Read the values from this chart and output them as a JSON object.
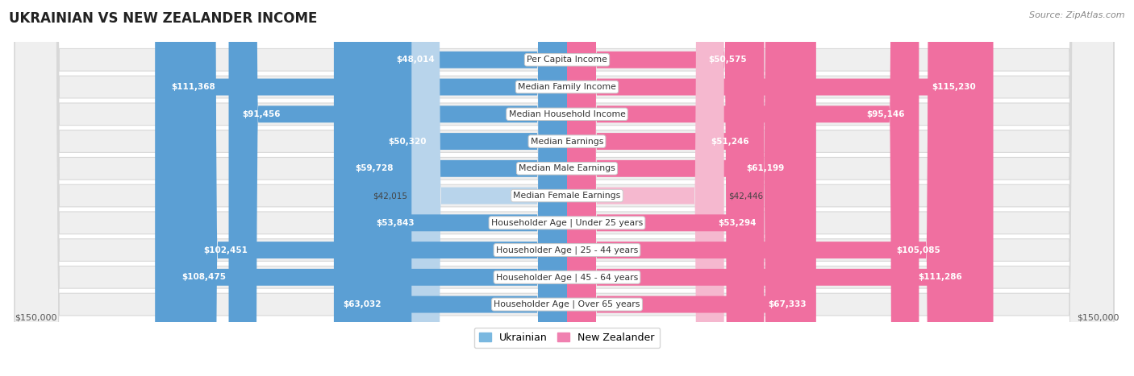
{
  "title": "UKRAINIAN VS NEW ZEALANDER INCOME",
  "source": "Source: ZipAtlas.com",
  "categories": [
    "Per Capita Income",
    "Median Family Income",
    "Median Household Income",
    "Median Earnings",
    "Median Male Earnings",
    "Median Female Earnings",
    "Householder Age | Under 25 years",
    "Householder Age | 25 - 44 years",
    "Householder Age | 45 - 64 years",
    "Householder Age | Over 65 years"
  ],
  "ukrainian_values": [
    48014,
    111368,
    91456,
    50320,
    59728,
    42015,
    53843,
    102451,
    108475,
    63032
  ],
  "newzealander_values": [
    50575,
    115230,
    95146,
    51246,
    61199,
    42446,
    53294,
    105085,
    111286,
    67333
  ],
  "ukrainian_labels": [
    "$48,014",
    "$111,368",
    "$91,456",
    "$50,320",
    "$59,728",
    "$42,015",
    "$53,843",
    "$102,451",
    "$108,475",
    "$63,032"
  ],
  "newzealander_labels": [
    "$50,575",
    "$115,230",
    "$95,146",
    "$51,246",
    "$61,199",
    "$42,446",
    "$53,294",
    "$105,085",
    "$111,286",
    "$67,333"
  ],
  "max_value": 150000,
  "ukr_light": "#b8d4eb",
  "ukr_dark": "#5b9fd4",
  "nz_light": "#f5b8cf",
  "nz_dark": "#f06fa0",
  "row_bg": "#efefef",
  "row_border": "#d8d8d8",
  "fig_bg": "#ffffff",
  "legend_ukr": "#7ab8e0",
  "legend_nz": "#f080b0",
  "inside_threshold": 0.3,
  "axis_label_left": "$150,000",
  "axis_label_right": "$150,000"
}
